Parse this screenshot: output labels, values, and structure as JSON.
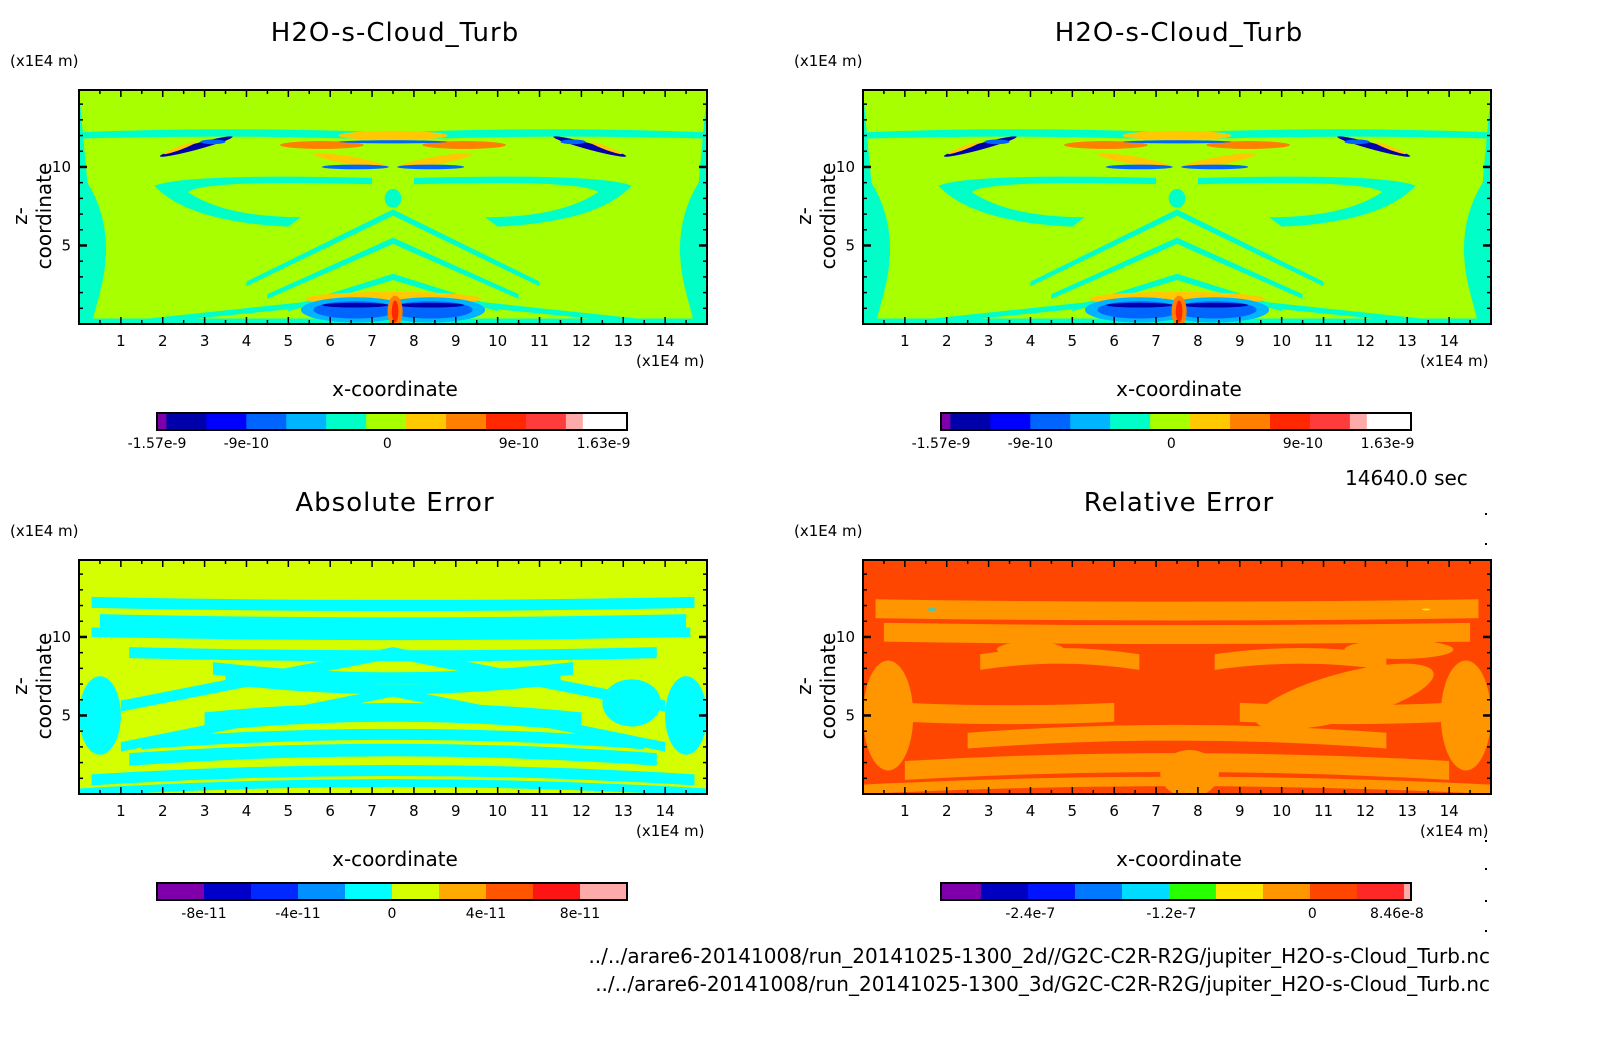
{
  "figure": {
    "timestamp": "14640.0 sec",
    "file_paths": [
      "../../arare6-20141008/run_20141025-1300_2d//G2C-C2R-R2G/jupiter_H2O-s-Cloud_Turb.nc",
      "../../arare6-20141008/run_20141025-1300_3d/G2C-C2R-R2G/jupiter_H2O-s-Cloud_Turb.nc"
    ]
  },
  "chart_data": [
    {
      "type": "heatmap",
      "id": "top-left",
      "title": "H2O-s-Cloud_Turb",
      "xlabel": "x-coordinate",
      "ylabel": "z-coordinate",
      "x_unit": "(x1E4 m)",
      "y_unit": "(x1E4 m)",
      "xlim": [
        0,
        15
      ],
      "ylim": [
        0,
        14.9
      ],
      "x_ticks": [
        1,
        2,
        3,
        4,
        5,
        6,
        7,
        8,
        9,
        10,
        11,
        12,
        13,
        14
      ],
      "y_ticks": [
        5,
        10
      ],
      "grid": false,
      "background_level_color": "#a8ff00",
      "colorbar": {
        "colors": [
          "#7f00aa",
          "#0000aa",
          "#0000ff",
          "#0064ff",
          "#00b4ff",
          "#00ffc8",
          "#a8ff00",
          "#ffc800",
          "#ff7f00",
          "#ff2800",
          "#ff3c3c",
          "#ffaaaa"
        ],
        "fractions": [
          0.02,
          0.085,
          0.085,
          0.085,
          0.085,
          0.085,
          0.085,
          0.085,
          0.085,
          0.085,
          0.085,
          0.035
        ],
        "tick_labels": [
          "-1.57e-9",
          "-9e-10",
          "0",
          "9e-10",
          "1.63e-9"
        ],
        "tick_positions": [
          0.0,
          0.19,
          0.49,
          0.77,
          0.95
        ],
        "min": -1.57e-09,
        "max": 1.63e-09
      },
      "pattern": "cloud"
    },
    {
      "type": "heatmap",
      "id": "top-right",
      "title": "H2O-s-Cloud_Turb",
      "xlabel": "x-coordinate",
      "ylabel": "z-coordinate",
      "x_unit": "(x1E4 m)",
      "y_unit": "(x1E4 m)",
      "xlim": [
        0,
        15
      ],
      "ylim": [
        0,
        14.9
      ],
      "x_ticks": [
        1,
        2,
        3,
        4,
        5,
        6,
        7,
        8,
        9,
        10,
        11,
        12,
        13,
        14
      ],
      "y_ticks": [
        5,
        10
      ],
      "grid": false,
      "background_level_color": "#a8ff00",
      "colorbar": {
        "colors": [
          "#7f00aa",
          "#0000aa",
          "#0000ff",
          "#0064ff",
          "#00b4ff",
          "#00ffc8",
          "#a8ff00",
          "#ffc800",
          "#ff7f00",
          "#ff2800",
          "#ff3c3c",
          "#ffaaaa"
        ],
        "fractions": [
          0.02,
          0.085,
          0.085,
          0.085,
          0.085,
          0.085,
          0.085,
          0.085,
          0.085,
          0.085,
          0.085,
          0.035
        ],
        "tick_labels": [
          "-1.57e-9",
          "-9e-10",
          "0",
          "9e-10",
          "1.63e-9"
        ],
        "tick_positions": [
          0.0,
          0.19,
          0.49,
          0.77,
          0.95
        ],
        "min": -1.57e-09,
        "max": 1.63e-09
      },
      "pattern": "cloud"
    },
    {
      "type": "heatmap",
      "id": "bottom-left",
      "title": "Absolute Error",
      "xlabel": "x-coordinate",
      "ylabel": "z-coordinate",
      "x_unit": "(x1E4 m)",
      "y_unit": "(x1E4 m)",
      "xlim": [
        0,
        15
      ],
      "ylim": [
        0,
        14.9
      ],
      "x_ticks": [
        1,
        2,
        3,
        4,
        5,
        6,
        7,
        8,
        9,
        10,
        11,
        12,
        13,
        14
      ],
      "y_ticks": [
        5,
        10
      ],
      "grid": false,
      "background_level_color": "#d4ff00",
      "colorbar": {
        "colors": [
          "#7f00aa",
          "#0000c8",
          "#0028ff",
          "#0090ff",
          "#00ffff",
          "#d4ff00",
          "#ffaa00",
          "#ff5500",
          "#ff1414",
          "#ffaaaa"
        ],
        "fractions": [
          0.1,
          0.1,
          0.1,
          0.1,
          0.1,
          0.1,
          0.1,
          0.1,
          0.1,
          0.1
        ],
        "tick_labels": [
          "-8e-11",
          "-4e-11",
          "0",
          "4e-11",
          "8e-11"
        ],
        "tick_positions": [
          0.1,
          0.3,
          0.5,
          0.7,
          0.9
        ],
        "min": -1e-10,
        "max": 1e-10
      },
      "pattern": "abs"
    },
    {
      "type": "heatmap",
      "id": "bottom-right",
      "title": "Relative Error",
      "xlabel": "x-coordinate",
      "ylabel": "z-coordinate",
      "x_unit": "(x1E4 m)",
      "y_unit": "(x1E4 m)",
      "xlim": [
        0,
        15
      ],
      "ylim": [
        0,
        14.9
      ],
      "x_ticks": [
        1,
        2,
        3,
        4,
        5,
        6,
        7,
        8,
        9,
        10,
        11,
        12,
        13,
        14
      ],
      "y_ticks": [
        5,
        10
      ],
      "grid": false,
      "background_level_color": "#ff4600",
      "colorbar": {
        "colors": [
          "#7f00aa",
          "#0000c0",
          "#0014ff",
          "#0078ff",
          "#00dcff",
          "#28ff00",
          "#ffe600",
          "#ff9600",
          "#ff4600",
          "#ff2828",
          "#ffaaaa"
        ],
        "fractions": [
          0.085,
          0.1,
          0.1,
          0.1,
          0.1,
          0.1,
          0.1,
          0.1,
          0.1,
          0.1,
          0.015
        ],
        "tick_labels": [
          "-2.4e-7",
          "-1.2e-7",
          "0",
          "8.46e-8"
        ],
        "tick_positions": [
          0.19,
          0.49,
          0.79,
          0.97
        ],
        "min": -3.4e-07,
        "max": 8.46e-08
      },
      "pattern": "rel"
    }
  ]
}
